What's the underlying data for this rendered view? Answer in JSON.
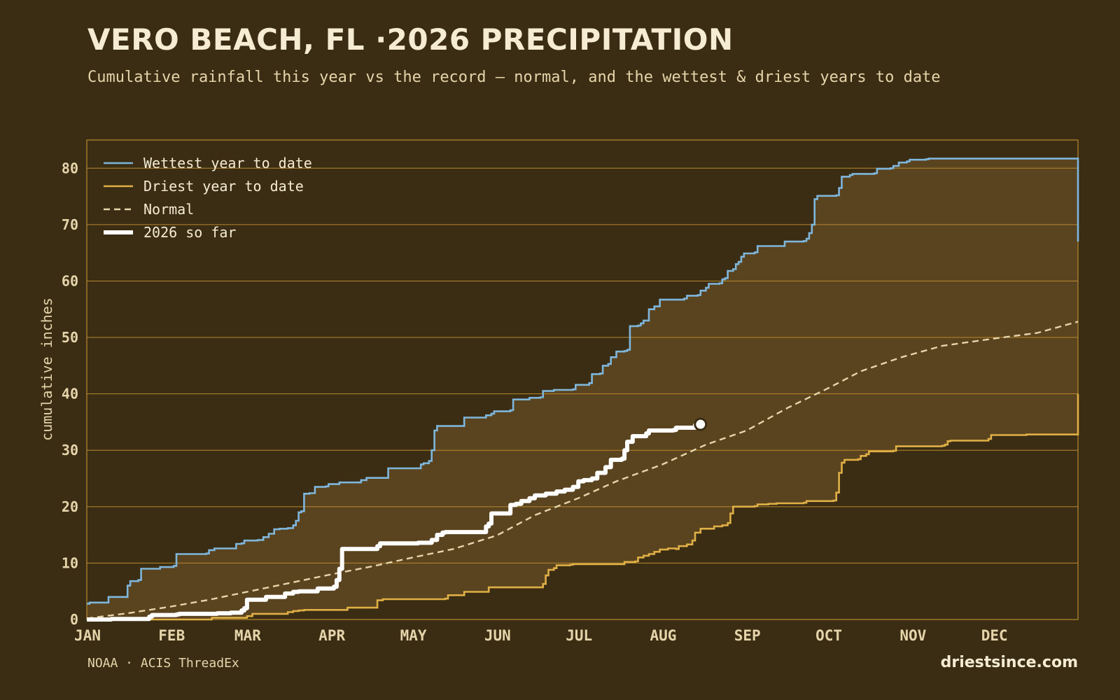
{
  "header": {
    "title": "VERO BEACH, FL ·2026 PRECIPITATION",
    "subtitle": "Cumulative rainfall this year vs the record — normal, and the wettest & driest years to date"
  },
  "footer": {
    "source": "NOAA · ACIS ThreadEx",
    "site": "driestsince.com"
  },
  "colors": {
    "background": "#3a2d14",
    "band_fill": "#5a431f",
    "grid": "#b8892e",
    "wettest": "#7fb6dc",
    "driest": "#e0b046",
    "normal": "#e6d5aa",
    "current": "#ffffff"
  },
  "chart_data": {
    "type": "line",
    "ylabel": "cumulative inches",
    "xlabel": "",
    "ylim": [
      0,
      85
    ],
    "xlim": [
      0,
      365
    ],
    "y_ticks": [
      0,
      10,
      20,
      30,
      40,
      50,
      60,
      70,
      80
    ],
    "x_ticks": [
      {
        "label": "JAN",
        "day": 0
      },
      {
        "label": "FEB",
        "day": 31
      },
      {
        "label": "MAR",
        "day": 59
      },
      {
        "label": "APR",
        "day": 90
      },
      {
        "label": "MAY",
        "day": 120
      },
      {
        "label": "JUN",
        "day": 151
      },
      {
        "label": "JUL",
        "day": 181
      },
      {
        "label": "AUG",
        "day": 212
      },
      {
        "label": "SEP",
        "day": 243
      },
      {
        "label": "OCT",
        "day": 273
      },
      {
        "label": "NOV",
        "day": 304
      },
      {
        "label": "DEC",
        "day": 334
      }
    ],
    "legend": {
      "placement": "top-left",
      "entries": [
        {
          "name": "Wettest year to date",
          "key": "wettest"
        },
        {
          "name": "Driest year to date",
          "key": "driest"
        },
        {
          "name": "Normal",
          "key": "normal"
        },
        {
          "name": "2026 so far",
          "key": "current"
        }
      ]
    },
    "series": [
      {
        "name": "Wettest year to date",
        "key": "wettest",
        "style": "step",
        "points": [
          [
            0,
            2.8
          ],
          [
            1,
            3
          ],
          [
            8,
            3
          ],
          [
            8,
            4
          ],
          [
            13,
            4
          ],
          [
            15,
            6
          ],
          [
            16,
            6.8
          ],
          [
            19,
            7
          ],
          [
            20,
            9
          ],
          [
            26,
            9
          ],
          [
            27,
            9.3
          ],
          [
            32,
            9.5
          ],
          [
            33,
            11.6
          ],
          [
            44,
            11.7
          ],
          [
            45,
            12.3
          ],
          [
            47,
            12.6
          ],
          [
            54,
            12.6
          ],
          [
            55,
            13.4
          ],
          [
            57,
            13.5
          ],
          [
            58,
            14
          ],
          [
            63,
            14.1
          ],
          [
            65,
            14.6
          ],
          [
            67,
            15.2
          ],
          [
            69,
            16
          ],
          [
            71,
            16.1
          ],
          [
            74,
            16.2
          ],
          [
            76,
            16.7
          ],
          [
            77,
            17.5
          ],
          [
            78,
            19
          ],
          [
            79,
            19.2
          ],
          [
            80,
            22.3
          ],
          [
            82,
            22.4
          ],
          [
            84,
            23.5
          ],
          [
            88,
            23.6
          ],
          [
            89,
            24
          ],
          [
            92,
            24
          ],
          [
            93,
            24.3
          ],
          [
            100,
            24.3
          ],
          [
            101,
            24.7
          ],
          [
            103,
            25.1
          ],
          [
            110,
            25.1
          ],
          [
            111,
            26.8
          ],
          [
            117,
            26.8
          ],
          [
            122,
            26.8
          ],
          [
            123,
            27.5
          ],
          [
            124,
            27.7
          ],
          [
            126,
            28.1
          ],
          [
            127,
            30
          ],
          [
            128,
            33.5
          ],
          [
            129,
            34.3
          ],
          [
            131,
            34.3
          ],
          [
            138,
            34.3
          ],
          [
            139,
            35.8
          ],
          [
            146,
            35.8
          ],
          [
            147,
            36.2
          ],
          [
            149,
            36.5
          ],
          [
            150,
            36.9
          ],
          [
            156,
            37.1
          ],
          [
            157,
            39
          ],
          [
            162,
            39
          ],
          [
            163,
            39.3
          ],
          [
            167,
            39.4
          ],
          [
            168,
            40.5
          ],
          [
            172,
            40.6
          ],
          [
            172,
            40.7
          ],
          [
            179,
            40.8
          ],
          [
            180,
            41.6
          ],
          [
            185,
            41.9
          ],
          [
            186,
            43.5
          ],
          [
            189,
            43.6
          ],
          [
            190,
            45
          ],
          [
            192,
            45.3
          ],
          [
            193,
            46.5
          ],
          [
            195,
            47.5
          ],
          [
            198,
            47.6
          ],
          [
            199,
            47.8
          ],
          [
            200,
            52
          ],
          [
            203,
            52.1
          ],
          [
            204,
            52.5
          ],
          [
            205,
            53
          ],
          [
            207,
            55
          ],
          [
            209,
            55.5
          ],
          [
            211,
            56.7
          ],
          [
            220,
            56.9
          ],
          [
            221,
            57.4
          ],
          [
            225,
            57.5
          ],
          [
            226,
            58.3
          ],
          [
            228,
            58.8
          ],
          [
            229,
            59.5
          ],
          [
            233,
            59.6
          ],
          [
            234,
            60.3
          ],
          [
            235,
            60.5
          ],
          [
            236,
            61.8
          ],
          [
            238,
            62.1
          ],
          [
            239,
            63
          ],
          [
            240,
            63.4
          ],
          [
            241,
            64.3
          ],
          [
            242,
            64.9
          ],
          [
            246,
            65.1
          ],
          [
            247,
            66.2
          ],
          [
            256,
            66.2
          ],
          [
            257,
            67
          ],
          [
            264,
            67.1
          ],
          [
            265,
            67.5
          ],
          [
            266,
            68.5
          ],
          [
            267,
            70
          ],
          [
            268,
            74.5
          ],
          [
            269,
            75.1
          ],
          [
            276,
            75.2
          ],
          [
            277,
            76.5
          ],
          [
            278,
            78.5
          ],
          [
            281,
            78.8
          ],
          [
            282,
            79
          ],
          [
            290,
            79.1
          ],
          [
            291,
            79.9
          ],
          [
            296,
            80
          ],
          [
            297,
            80.4
          ],
          [
            299,
            81
          ],
          [
            302,
            81.2
          ],
          [
            303,
            81.5
          ],
          [
            309,
            81.6
          ],
          [
            310,
            81.7
          ],
          [
            364,
            81.7
          ],
          [
            365,
            67
          ]
        ]
      },
      {
        "name": "Driest year to date",
        "key": "driest",
        "style": "step",
        "points": [
          [
            0,
            0
          ],
          [
            10,
            0
          ],
          [
            45,
            0
          ],
          [
            46,
            0.3
          ],
          [
            55,
            0.3
          ],
          [
            59,
            0.6
          ],
          [
            61,
            1
          ],
          [
            73,
            1
          ],
          [
            74,
            1.3
          ],
          [
            76,
            1.5
          ],
          [
            78,
            1.6
          ],
          [
            80,
            1.7
          ],
          [
            94,
            1.7
          ],
          [
            96,
            2.1
          ],
          [
            106,
            2.1
          ],
          [
            107,
            3.4
          ],
          [
            109,
            3.6
          ],
          [
            121,
            3.6
          ],
          [
            132,
            3.7
          ],
          [
            133,
            4.3
          ],
          [
            138,
            4.3
          ],
          [
            139,
            4.9
          ],
          [
            147,
            4.9
          ],
          [
            148,
            5.7
          ],
          [
            167,
            5.7
          ],
          [
            168,
            6.3
          ],
          [
            169,
            7.8
          ],
          [
            170,
            8.8
          ],
          [
            172,
            9.1
          ],
          [
            173,
            9.6
          ],
          [
            178,
            9.7
          ],
          [
            179,
            9.8
          ],
          [
            197,
            9.8
          ],
          [
            198,
            10.2
          ],
          [
            202,
            10.3
          ],
          [
            203,
            11
          ],
          [
            205,
            11.3
          ],
          [
            207,
            11.6
          ],
          [
            209,
            12
          ],
          [
            211,
            12.4
          ],
          [
            214,
            12.6
          ],
          [
            217,
            12.5
          ],
          [
            218,
            13
          ],
          [
            221,
            13.3
          ],
          [
            223,
            14
          ],
          [
            224,
            15.4
          ],
          [
            226,
            16.1
          ],
          [
            230,
            16.1
          ],
          [
            231,
            16.5
          ],
          [
            234,
            16.7
          ],
          [
            236,
            17.1
          ],
          [
            237,
            18.8
          ],
          [
            238,
            20
          ],
          [
            246,
            20.1
          ],
          [
            247,
            20.4
          ],
          [
            251,
            20.5
          ],
          [
            254,
            20.6
          ],
          [
            264,
            20.7
          ],
          [
            265,
            21
          ],
          [
            275,
            21.1
          ],
          [
            276,
            22.5
          ],
          [
            277,
            26
          ],
          [
            278,
            27.8
          ],
          [
            279,
            28.3
          ],
          [
            284,
            28.4
          ],
          [
            285,
            29
          ],
          [
            287,
            29.3
          ],
          [
            288,
            29.8
          ],
          [
            297,
            29.9
          ],
          [
            298,
            30.7
          ],
          [
            300,
            30.7
          ],
          [
            315,
            30.8
          ],
          [
            316,
            31
          ],
          [
            317,
            31.6
          ],
          [
            318,
            31.7
          ],
          [
            328,
            31.7
          ],
          [
            332,
            32
          ],
          [
            333,
            32.7
          ],
          [
            345,
            32.7
          ],
          [
            346,
            32.8
          ],
          [
            364,
            32.8
          ],
          [
            365,
            40
          ]
        ]
      },
      {
        "name": "Normal",
        "key": "normal",
        "style": "smooth",
        "points": [
          [
            0,
            0.2
          ],
          [
            15,
            1.1
          ],
          [
            31,
            2.3
          ],
          [
            45,
            3.5
          ],
          [
            59,
            4.9
          ],
          [
            75,
            6.5
          ],
          [
            90,
            8
          ],
          [
            105,
            9.4
          ],
          [
            120,
            11
          ],
          [
            135,
            12.5
          ],
          [
            151,
            14.9
          ],
          [
            165,
            18.5
          ],
          [
            181,
            21.5
          ],
          [
            195,
            24.5
          ],
          [
            212,
            27.5
          ],
          [
            228,
            31
          ],
          [
            243,
            33.5
          ],
          [
            258,
            37.5
          ],
          [
            273,
            41
          ],
          [
            285,
            44
          ],
          [
            300,
            46.5
          ],
          [
            315,
            48.5
          ],
          [
            334,
            49.8
          ],
          [
            350,
            50.8
          ],
          [
            365,
            52.8
          ]
        ]
      },
      {
        "name": "2026 so far",
        "key": "current",
        "style": "step",
        "points": [
          [
            0,
            0
          ],
          [
            9,
            0.1
          ],
          [
            23,
            0.5
          ],
          [
            24,
            0.8
          ],
          [
            33,
            0.9
          ],
          [
            34,
            1
          ],
          [
            48,
            1.1
          ],
          [
            53,
            1.2
          ],
          [
            57,
            1.6
          ],
          [
            58,
            2
          ],
          [
            59,
            3.5
          ],
          [
            65,
            3.5
          ],
          [
            66,
            4
          ],
          [
            72,
            4
          ],
          [
            73,
            4.6
          ],
          [
            76,
            4.9
          ],
          [
            78,
            5
          ],
          [
            84,
            5
          ],
          [
            85,
            5.5
          ],
          [
            91,
            5.8
          ],
          [
            92,
            7
          ],
          [
            93,
            9
          ],
          [
            94,
            12.5
          ],
          [
            104,
            12.5
          ],
          [
            107,
            13
          ],
          [
            108,
            13.5
          ],
          [
            122,
            13.6
          ],
          [
            127,
            14.1
          ],
          [
            129,
            15
          ],
          [
            131,
            15.4
          ],
          [
            132,
            15.5
          ],
          [
            145,
            15.5
          ],
          [
            147,
            16.5
          ],
          [
            148,
            17
          ],
          [
            149,
            18.8
          ],
          [
            155,
            18.8
          ],
          [
            156,
            20.3
          ],
          [
            158,
            20.5
          ],
          [
            160,
            21
          ],
          [
            163,
            21.5
          ],
          [
            165,
            22
          ],
          [
            169,
            22.3
          ],
          [
            173,
            22.7
          ],
          [
            176,
            23
          ],
          [
            179,
            23.5
          ],
          [
            181,
            24.5
          ],
          [
            183,
            24.7
          ],
          [
            186,
            25
          ],
          [
            188,
            26
          ],
          [
            191,
            27
          ],
          [
            193,
            28.3
          ],
          [
            197,
            28.5
          ],
          [
            198,
            30
          ],
          [
            199,
            31.5
          ],
          [
            201,
            32.5
          ],
          [
            206,
            33
          ],
          [
            207,
            33.5
          ],
          [
            216,
            33.6
          ],
          [
            217,
            34
          ],
          [
            224,
            34.5
          ],
          [
            226,
            34.6
          ]
        ]
      }
    ],
    "current_marker": {
      "day": 226,
      "value": 34.6
    }
  }
}
